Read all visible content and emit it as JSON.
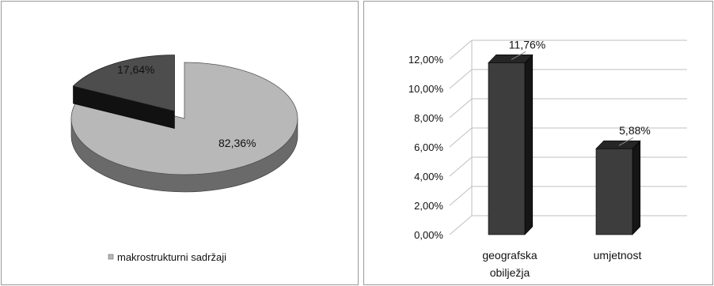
{
  "chart_data": [
    {
      "type": "pie",
      "title": "",
      "slices": [
        {
          "label": "makrostrukturni sadržaji",
          "value": 82.36,
          "value_label": "82,36%"
        },
        {
          "label": "",
          "value": 17.64,
          "value_label": "17,64%"
        }
      ],
      "legend": {
        "placement": "bottom",
        "entries": [
          "makrostrukturni sadržaji"
        ]
      },
      "style": {
        "three_d": true,
        "exploded_slice": 1
      },
      "colors": {
        "large_top": "#b8b8b8",
        "large_side": "#6a6a6a",
        "small_top": "#4d4d4d",
        "small_side": "#111111"
      }
    },
    {
      "type": "bar",
      "title": "",
      "categories": [
        "geografska obilježja",
        "umjetnost"
      ],
      "category_lines": [
        [
          "geografska",
          "obilježja"
        ],
        [
          "umjetnost"
        ]
      ],
      "values": [
        11.76,
        5.88
      ],
      "value_labels": [
        "11,76%",
        "5,88%"
      ],
      "ylim": [
        0,
        12
      ],
      "yticks": [
        0,
        2,
        4,
        6,
        8,
        10,
        12
      ],
      "ytick_labels": [
        "0,00%",
        "2,00%",
        "4,00%",
        "6,00%",
        "8,00%",
        "10,00%",
        "12,00%"
      ],
      "xlabel": "",
      "ylabel": "",
      "grid": true,
      "style": {
        "three_d": true
      },
      "colors": {
        "bar_front": "#3d3d3d",
        "bar_side": "#151515",
        "bar_top": "#262626",
        "grid": "#bfbfbf"
      }
    }
  ]
}
